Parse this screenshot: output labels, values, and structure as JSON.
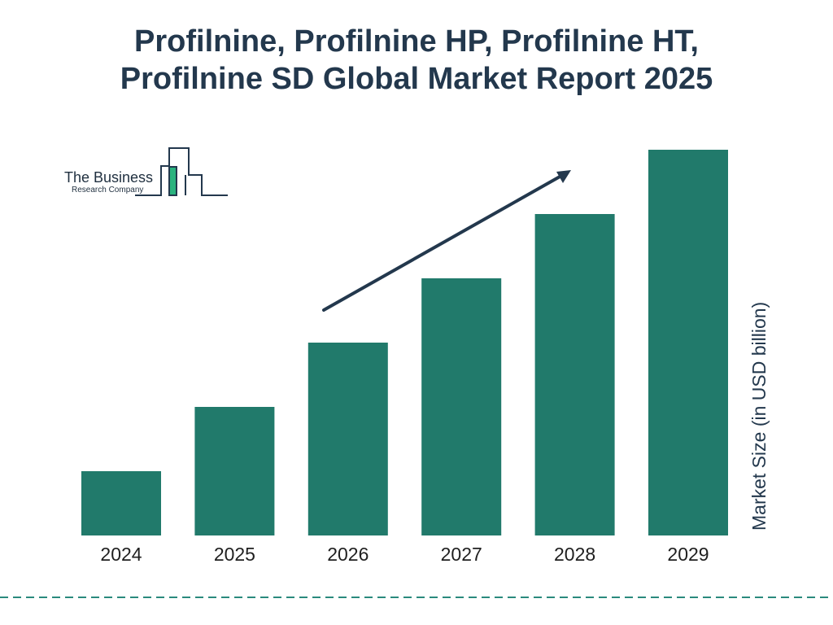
{
  "chart_data": {
    "type": "bar",
    "title_lines": [
      "Profilnine, Profilnine HP, Profilnine HT,",
      "Profilnine SD Global Market Report 2025"
    ],
    "categories": [
      "2024",
      "2025",
      "2026",
      "2027",
      "2028",
      "2029"
    ],
    "values": [
      1.0,
      2.0,
      3.0,
      4.0,
      5.0,
      6.0
    ],
    "ylabel": "Market Size (in USD billion)",
    "xlabel": "",
    "ylim": [
      0,
      6.0
    ],
    "grid": false,
    "trend_arrow": true
  },
  "colors": {
    "bar": "#217a6b",
    "title": "#23384d",
    "arrow": "#23384d",
    "dashed_line": "#2a8a7d",
    "logo_green": "#2ab37e",
    "logo_dark": "#23384d"
  },
  "logo": {
    "line1": "The Business",
    "line2": "Research Company"
  }
}
